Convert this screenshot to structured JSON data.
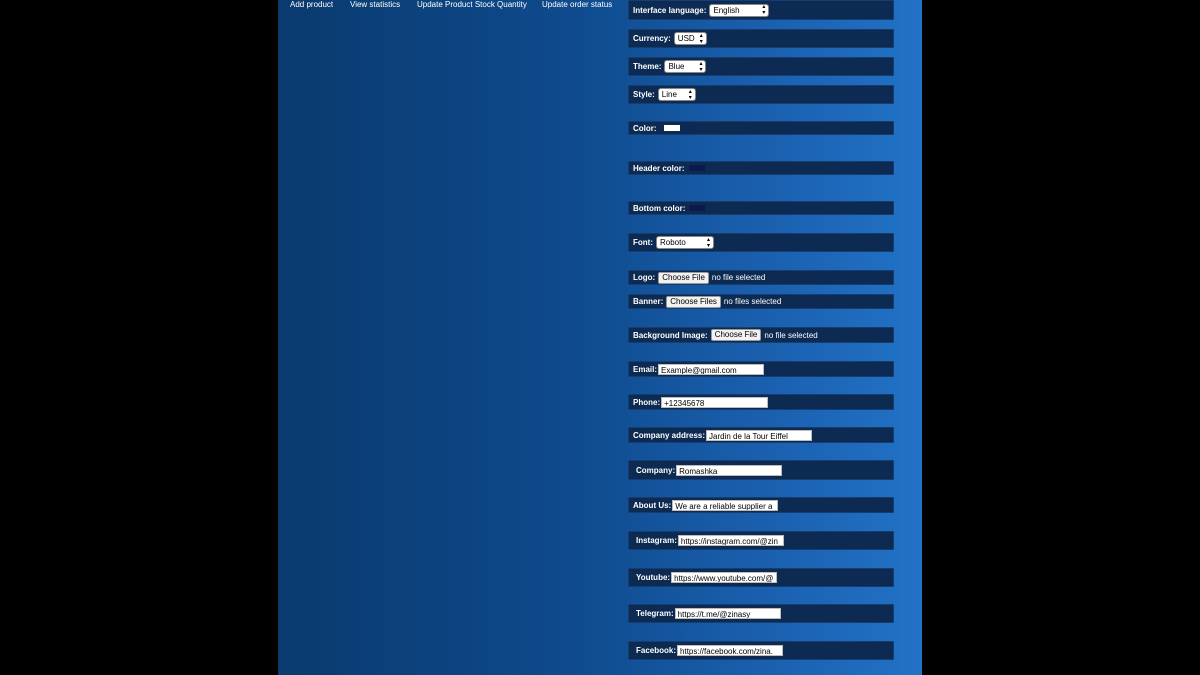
{
  "nav": {
    "add_product": "Add product",
    "view_statistics": "View statistics",
    "update_stock": "Update Product Stock Quantity",
    "update_order": "Update order status"
  },
  "settings": {
    "interface_language": {
      "label": "Interface language:",
      "value": "English"
    },
    "currency": {
      "label": "Currency:",
      "value": "USD"
    },
    "theme": {
      "label": "Theme:",
      "value": "Blue"
    },
    "style": {
      "label": "Style:",
      "value": "Line"
    },
    "color": {
      "label": "Color:",
      "value": "#ffffff"
    },
    "header_color": {
      "label": "Header color:",
      "value": "#0b1a4a"
    },
    "bottom_color": {
      "label": "Bottom color:",
      "value": "#0b1a4a"
    },
    "font": {
      "label": "Font:",
      "value": "Roboto"
    },
    "logo": {
      "label": "Logo:",
      "button": "Choose File",
      "status": "no file selected"
    },
    "banner": {
      "label": "Banner:",
      "button": "Choose Files",
      "status": "no files selected"
    },
    "background_image": {
      "label": "Background Image:",
      "button": "Choose File",
      "status": "no file selected"
    },
    "email": {
      "label": "Email:",
      "value": "Example@gmail.com"
    },
    "phone": {
      "label": "Phone:",
      "value": "+12345678"
    },
    "company_address": {
      "label": "Company address:",
      "value": "Jardin de la Tour Eiffel"
    },
    "company": {
      "label": "Company:",
      "value": "Romashka"
    },
    "about_us": {
      "label": "About Us:",
      "value": "We are a reliable supplier a"
    },
    "instagram": {
      "label": "Instagram:",
      "value": "https://instagram.com/@zin"
    },
    "youtube": {
      "label": "Youtube:",
      "value": "https://www.youtube.com/@"
    },
    "telegram": {
      "label": "Telegram:",
      "value": "https://t.me/@zinasy"
    },
    "facebook": {
      "label": "Facebook:",
      "value": "https://facebook.com/zina."
    }
  },
  "colors": {
    "panel_bg": "#0d2b52",
    "page_gradient_start": "#0a3a6e",
    "page_gradient_end": "#2272c6"
  }
}
